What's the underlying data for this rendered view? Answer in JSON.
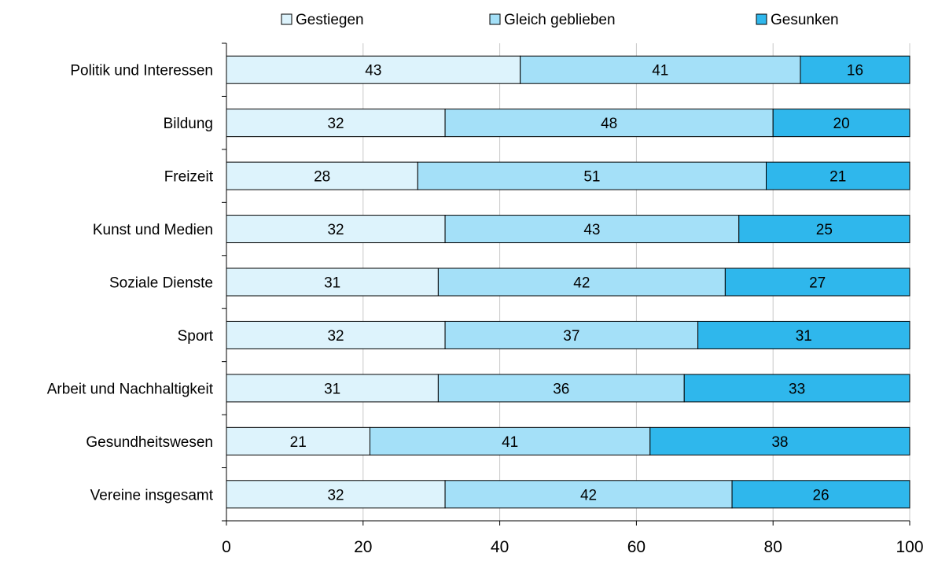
{
  "chart_data": {
    "type": "bar",
    "orientation": "horizontal",
    "stacked": true,
    "categories": [
      "Politik und Interessen",
      "Bildung",
      "Freizeit",
      "Kunst und Medien",
      "Soziale Dienste",
      "Sport",
      "Arbeit und Nachhaltigkeit",
      "Gesundheitswesen",
      "Vereine insgesamt"
    ],
    "series": [
      {
        "name": "Gestiegen",
        "color": "#ddf3fc",
        "values": [
          43,
          32,
          28,
          32,
          31,
          32,
          31,
          21,
          32
        ]
      },
      {
        "name": "Gleich geblieben",
        "color": "#a4e0f8",
        "values": [
          41,
          48,
          51,
          43,
          42,
          37,
          36,
          41,
          42
        ]
      },
      {
        "name": "Gesunken",
        "color": "#2fb7ec",
        "values": [
          16,
          20,
          21,
          25,
          27,
          31,
          33,
          38,
          26
        ]
      }
    ],
    "xlim": [
      0,
      100
    ],
    "x_ticks": [
      0,
      20,
      40,
      60,
      80,
      100
    ],
    "grid": true,
    "legend": "top"
  }
}
